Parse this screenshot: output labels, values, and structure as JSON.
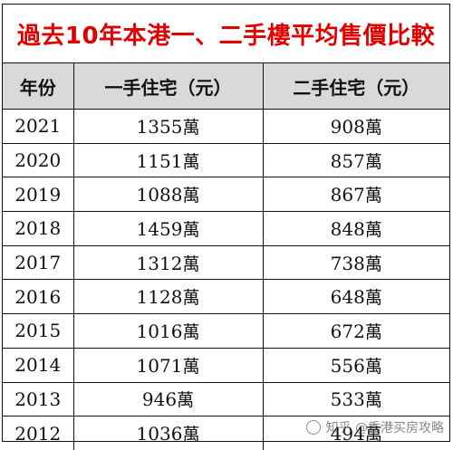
{
  "title": "過去10年本港一、二手樓平均售價比較",
  "headers": [
    "年份",
    "一手住宅（元）",
    "二手住宅（元）"
  ],
  "unit_suffix": "萬",
  "watermark": {
    "text": "知乎 @香港买房攻略",
    "icon": "avatar-icon"
  },
  "chart_data": {
    "type": "table",
    "title": "過去10年本港一、二手樓平均售價比較",
    "columns": [
      "年份",
      "一手住宅（元）",
      "二手住宅（元）"
    ],
    "rows": [
      {
        "year": "2021",
        "first_hand": 1355,
        "second_hand": 908
      },
      {
        "year": "2020",
        "first_hand": 1151,
        "second_hand": 857
      },
      {
        "year": "2019",
        "first_hand": 1088,
        "second_hand": 867
      },
      {
        "year": "2018",
        "first_hand": 1459,
        "second_hand": 848
      },
      {
        "year": "2017",
        "first_hand": 1312,
        "second_hand": 738
      },
      {
        "year": "2016",
        "first_hand": 1128,
        "second_hand": 648
      },
      {
        "year": "2015",
        "first_hand": 1016,
        "second_hand": 672
      },
      {
        "year": "2014",
        "first_hand": 1071,
        "second_hand": 556
      },
      {
        "year": "2013",
        "first_hand": 946,
        "second_hand": 533
      },
      {
        "year": "2012",
        "first_hand": 1036,
        "second_hand": 494
      }
    ]
  }
}
